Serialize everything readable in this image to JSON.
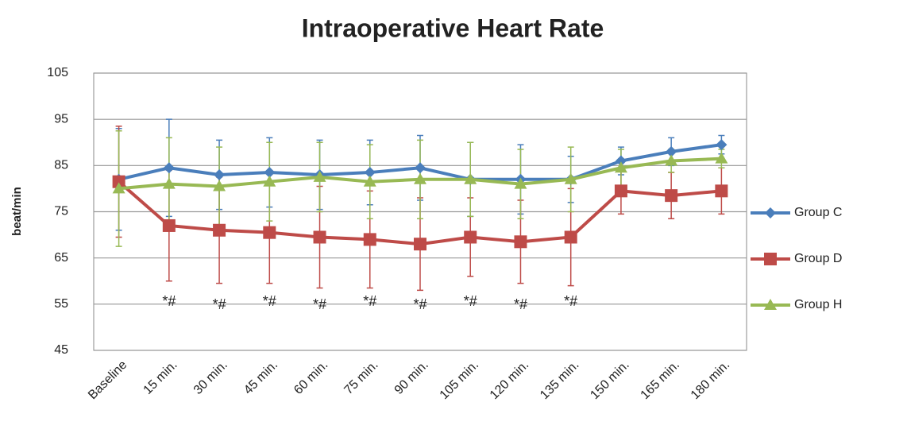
{
  "chart_data": {
    "type": "line",
    "title": "Intraoperative Heart Rate",
    "y_label": "beat/min",
    "categories": [
      "Baseline",
      "15 min.",
      "30 min.",
      "45 min.",
      "60 min.",
      "75 min.",
      "90 min.",
      "105 min.",
      "120 min.",
      "135 min.",
      "150 min.",
      "165 min.",
      "180 min."
    ],
    "series": [
      {
        "name": "Group C",
        "color": "#4a7ebb",
        "marker": "diamond",
        "values": [
          82,
          84.5,
          83,
          83.5,
          83,
          83.5,
          84.5,
          82,
          82,
          82,
          86,
          88,
          89.5
        ],
        "errors": [
          11,
          10.5,
          7.5,
          7.5,
          7.5,
          7,
          7,
          8,
          7.5,
          5,
          3,
          3,
          2
        ]
      },
      {
        "name": "Group D",
        "color": "#be4b48",
        "marker": "square",
        "values": [
          81.5,
          72,
          71,
          70.5,
          69.5,
          69,
          68,
          69.5,
          68.5,
          69.5,
          79.5,
          78.5,
          79.5
        ],
        "errors": [
          12,
          12,
          11.5,
          11,
          11,
          10.5,
          10,
          8.5,
          9,
          10.5,
          5,
          5,
          5
        ]
      },
      {
        "name": "Group H",
        "color": "#98b954",
        "marker": "triangle",
        "values": [
          80,
          81,
          80.5,
          81.5,
          82.5,
          81.5,
          82,
          82,
          81,
          82,
          84.5,
          86,
          86.5
        ],
        "errors": [
          12.5,
          10,
          8.5,
          8.5,
          7.5,
          8,
          8.5,
          8,
          7.5,
          7,
          4,
          2.5,
          2
        ]
      }
    ],
    "annotations": [
      {
        "text": "*#",
        "x": "15 min."
      },
      {
        "text": "*#",
        "x": "30 min."
      },
      {
        "text": "*#",
        "x": "45 min."
      },
      {
        "text": "*#",
        "x": "60 min."
      },
      {
        "text": "*#",
        "x": "75 min."
      },
      {
        "text": "*#",
        "x": "90 min."
      },
      {
        "text": "*#",
        "x": "105 min."
      },
      {
        "text": "*#",
        "x": "120 min."
      },
      {
        "text": "*#",
        "x": "135 min."
      }
    ],
    "ylim": [
      45,
      105
    ],
    "yticks": [
      45,
      55,
      65,
      75,
      85,
      95,
      105
    ],
    "grid": true,
    "legend": "right"
  }
}
